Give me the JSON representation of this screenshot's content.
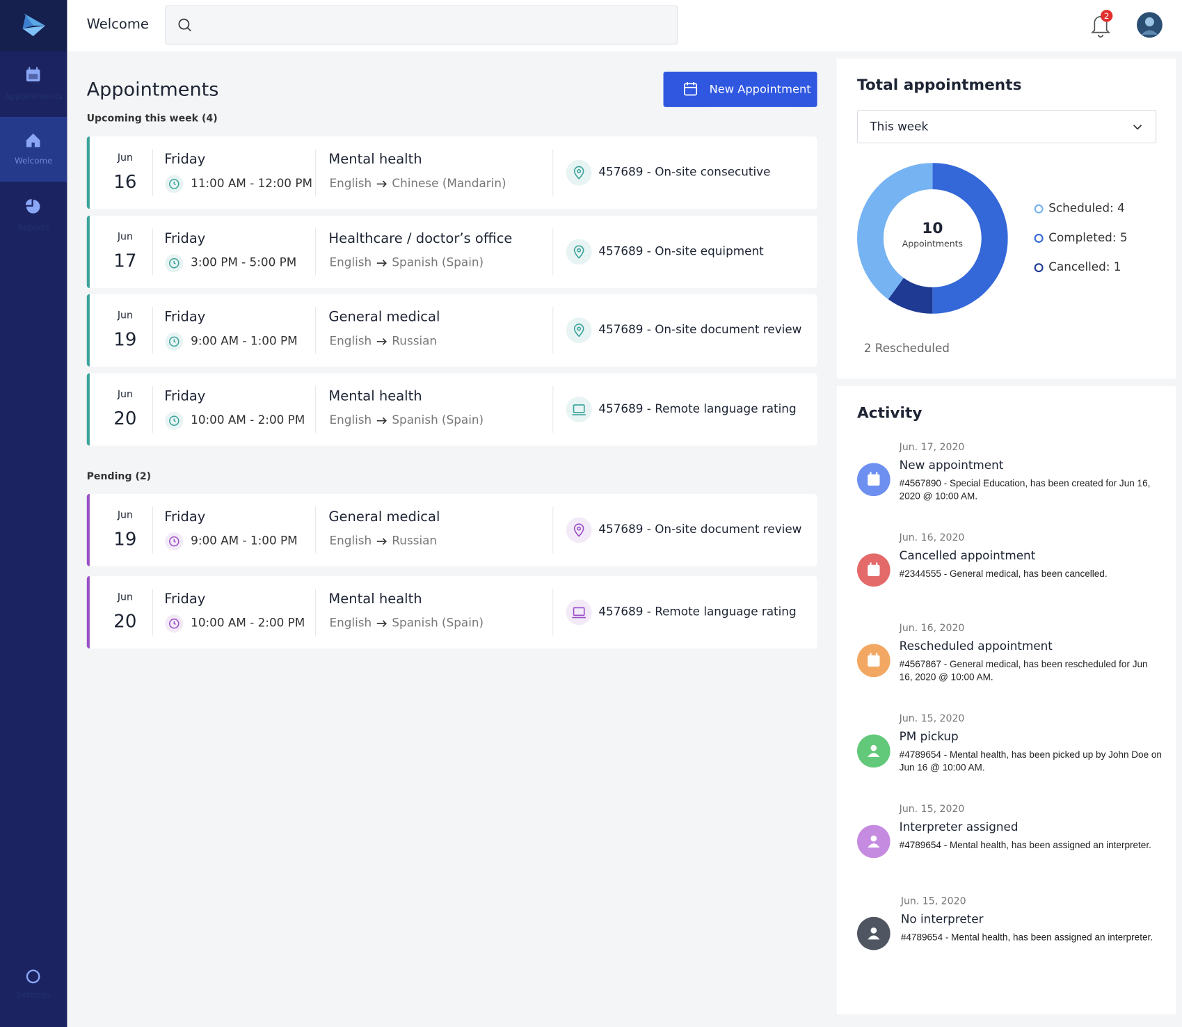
{
  "sidebar": {
    "items": [
      "Appointments",
      "Welcome",
      "Reports",
      "Settings"
    ]
  },
  "header": {
    "title": "Welcome",
    "notification_count": "2"
  },
  "appointments": {
    "title": "Appointments",
    "new_button": "New Appointment",
    "groups": [
      {
        "heading": "Upcoming this week (4)",
        "color": "#3aa39a",
        "items": [
          {
            "month": "Jun",
            "day": "16",
            "weekday": "Friday",
            "time": "11:00 AM - 12:00 PM",
            "category": "Mental health",
            "from": "English",
            "to": "Chinese (Mandarin)",
            "location": "457689 - On-site consecutive",
            "icon": "pin"
          },
          {
            "month": "Jun",
            "day": "17",
            "weekday": "Friday",
            "time": "3:00 PM - 5:00 PM",
            "category": "Healthcare / doctor’s office",
            "from": "English",
            "to": "Spanish (Spain)",
            "location": "457689 - On-site equipment",
            "icon": "pin"
          },
          {
            "month": "Jun",
            "day": "19",
            "weekday": "Friday",
            "time": "9:00 AM - 1:00 PM",
            "category": "General medical",
            "from": "English",
            "to": "Russian",
            "location": "457689 - On-site document review",
            "icon": "pin"
          },
          {
            "month": "Jun",
            "day": "20",
            "weekday": "Friday",
            "time": "10:00 AM - 2:00 PM",
            "category": "Mental health",
            "from": "English",
            "to": "Spanish (Spain)",
            "location": "457689 - Remote language rating",
            "icon": "laptop"
          }
        ]
      },
      {
        "heading": "Pending (2)",
        "color": "#9b4fc7",
        "items": [
          {
            "month": "Jun",
            "day": "19",
            "weekday": "Friday",
            "time": "9:00 AM - 1:00 PM",
            "category": "General medical",
            "from": "English",
            "to": "Russian",
            "location": "457689 - On-site document review",
            "icon": "pin"
          },
          {
            "month": "Jun",
            "day": "20",
            "weekday": "Friday",
            "time": "10:00 AM - 2:00 PM",
            "category": "Mental health",
            "from": "English",
            "to": "Spanish (Spain)",
            "location": "457689 - Remote language rating",
            "icon": "laptop"
          }
        ]
      }
    ]
  },
  "totals": {
    "title": "Total appointments",
    "period": "This week",
    "center_value": "10",
    "center_label": "Appointments",
    "rescheduled": "2 Rescheduled",
    "segments": [
      {
        "label": "Completed: 5",
        "value": 5,
        "color": "#3468d8"
      },
      {
        "label": "Cancelled: 1",
        "value": 1,
        "color": "#1f3a93"
      },
      {
        "label": "Scheduled: 4",
        "value": 4,
        "color": "#76b3f2"
      }
    ]
  },
  "activity": {
    "title": "Activity",
    "items": [
      {
        "date": "Jun. 17, 2020",
        "title": "New appointment",
        "text": "#4567890 - Special Education, has been created for Jun 16, 2020 @ 10:00 AM.",
        "color": "#6d8ff0",
        "icon": "calendar"
      },
      {
        "date": "Jun. 16, 2020",
        "title": "Cancelled appointment",
        "text": "#2344555 - General medical, has been cancelled.",
        "color": "#e46a6a",
        "icon": "calendar"
      },
      {
        "date": "Jun. 16, 2020",
        "title": "Rescheduled appointment",
        "text": "#4567867 - General medical, has been rescheduled for Jun 16, 2020 @ 10:00 AM.",
        "color": "#f2a862",
        "icon": "calendar"
      },
      {
        "date": "Jun. 15, 2020",
        "title": "PM pickup",
        "text": "#4789654 - Mental health, has been picked up by John Doe on Jun 16 @ 10:00 AM.",
        "color": "#63c97a",
        "icon": "person"
      },
      {
        "date": "Jun. 15, 2020",
        "title": "Interpreter assigned",
        "text": "#4789654 - Mental health, has been assigned an interpreter.",
        "color": "#c58be0",
        "icon": "person"
      },
      {
        "date": "Jun. 15, 2020",
        "title": "No interpreter",
        "text": "#4789654 - Mental health, has been assigned an interpreter.",
        "color": "#4f5662",
        "icon": "person"
      }
    ]
  }
}
